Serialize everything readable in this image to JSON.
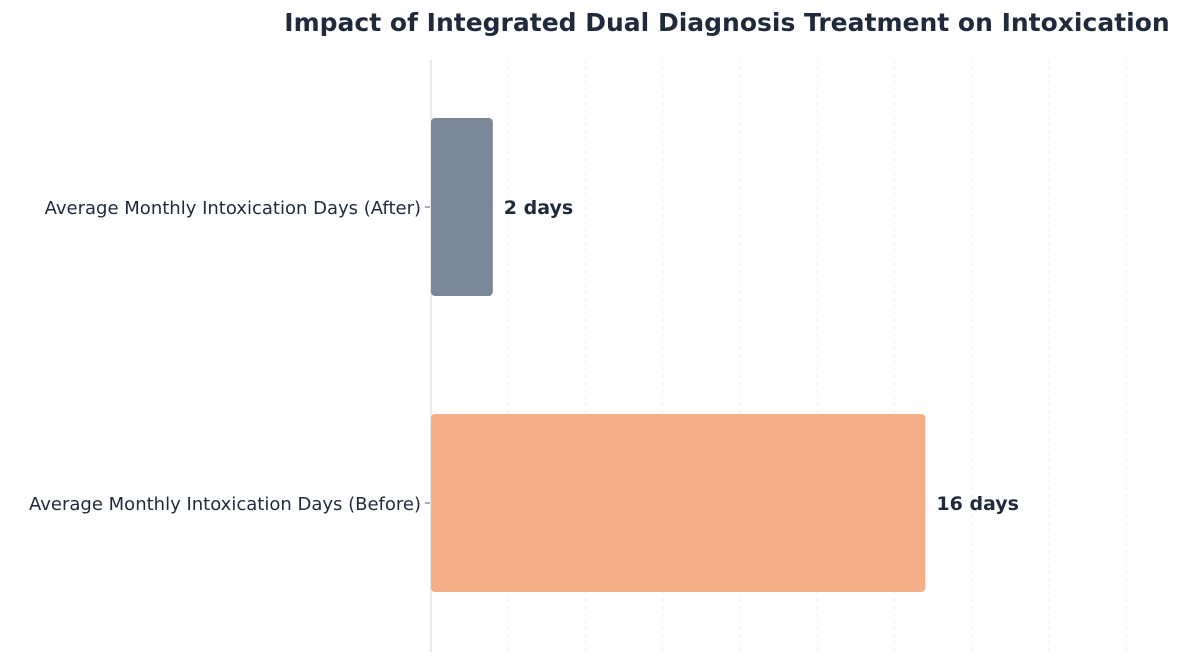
{
  "chart_data": {
    "type": "bar",
    "orientation": "horizontal",
    "title": "Impact of Integrated Dual Diagnosis Treatment on Intoxication",
    "xlabel": "",
    "ylabel": "",
    "categories": [
      "Average Monthly Intoxication Days (After)",
      "Average Monthly Intoxication Days (Before)"
    ],
    "values": [
      2,
      16
    ],
    "value_labels": [
      "2 days",
      "16 days"
    ],
    "colors": [
      "#7a8799",
      "#f4ae88"
    ],
    "xlim": [
      0,
      24
    ],
    "grid": true,
    "legend": "none"
  }
}
